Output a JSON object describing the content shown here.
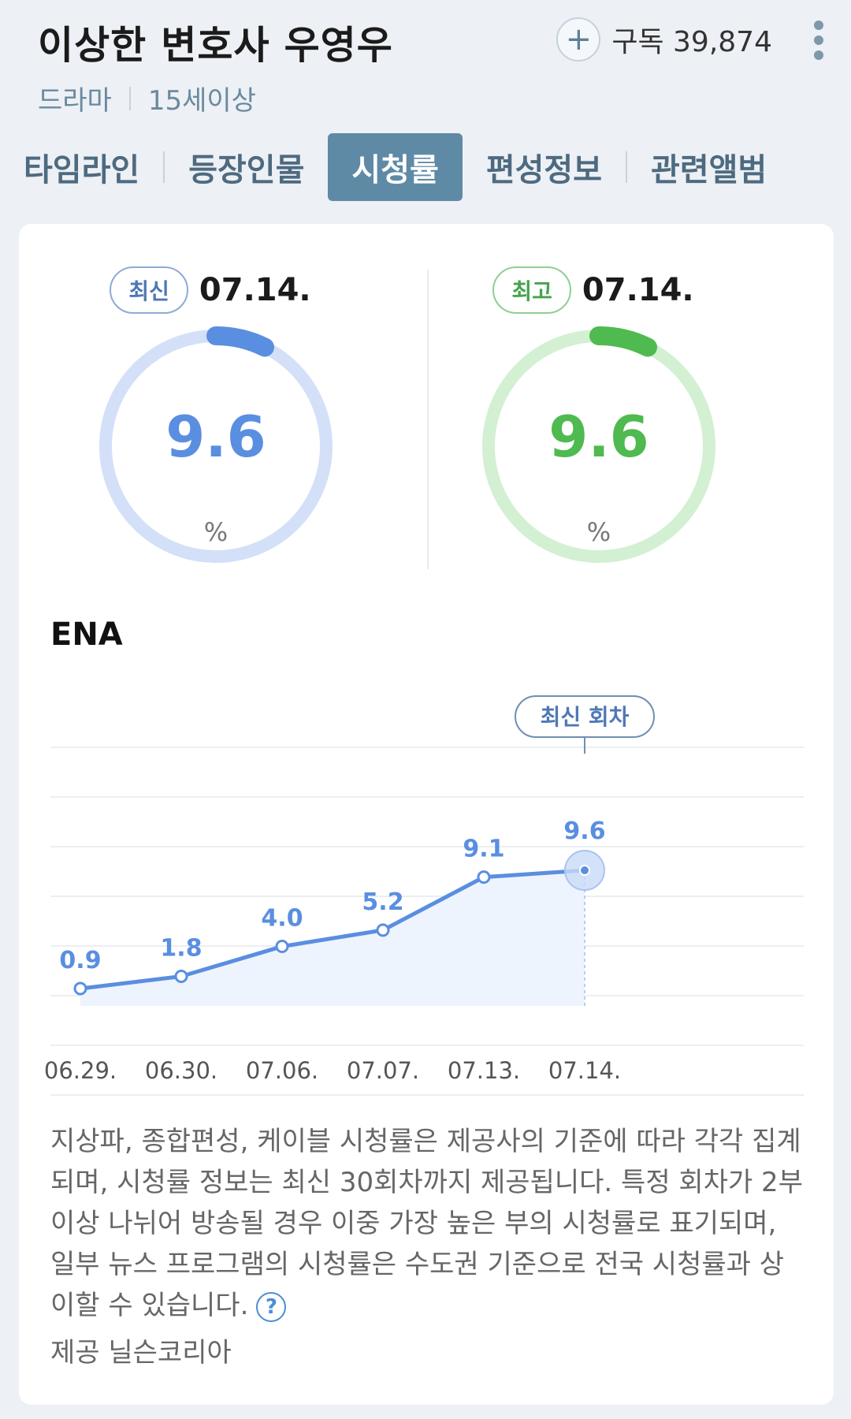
{
  "header": {
    "title": "이상한 변호사 우영우",
    "subscribe_label": "구독 39,874",
    "genre": "드라마",
    "rating": "15세이상"
  },
  "tabs": [
    {
      "label": "타임라인",
      "active": false
    },
    {
      "label": "등장인물",
      "active": false
    },
    {
      "label": "시청률",
      "active": true
    },
    {
      "label": "편성정보",
      "active": false
    },
    {
      "label": "관련앨범",
      "active": false
    }
  ],
  "gauges": {
    "latest": {
      "badge": "최신",
      "date": "07.14.",
      "value": "9.6",
      "unit": "%",
      "color": "#5a8ee0"
    },
    "best": {
      "badge": "최고",
      "date": "07.14.",
      "value": "9.6",
      "unit": "%",
      "color": "#4fba4f"
    }
  },
  "channel": "ENA",
  "chart_data": {
    "type": "line",
    "categories": [
      "06.29.",
      "06.30.",
      "07.06.",
      "07.07.",
      "07.13.",
      "07.14."
    ],
    "values": [
      0.9,
      1.8,
      4.0,
      5.2,
      9.1,
      9.6
    ],
    "value_labels": [
      "0.9",
      "1.8",
      "4.0",
      "5.2",
      "9.1",
      "9.6"
    ],
    "highlight_label": "최신 회차",
    "highlight_index": 5,
    "color": "#5a8ee0",
    "fill": "#eef4fd",
    "grid": true
  },
  "notice": "지상파, 종합편성, 케이블 시청률은 제공사의 기준에 따라 각각 집계되며, 시청률 정보는 최신 30회차까지 제공됩니다. 특정 회차가 2부이상 나뉘어 방송될 경우 이중 가장 높은 부의 시청률로 표기되며, 일부 뉴스 프로그램의 시청률은 수도권 기준으로 전국 시청률과 상이할 수 있습니다.",
  "help_glyph": "?",
  "provider": "제공 닐슨코리아"
}
